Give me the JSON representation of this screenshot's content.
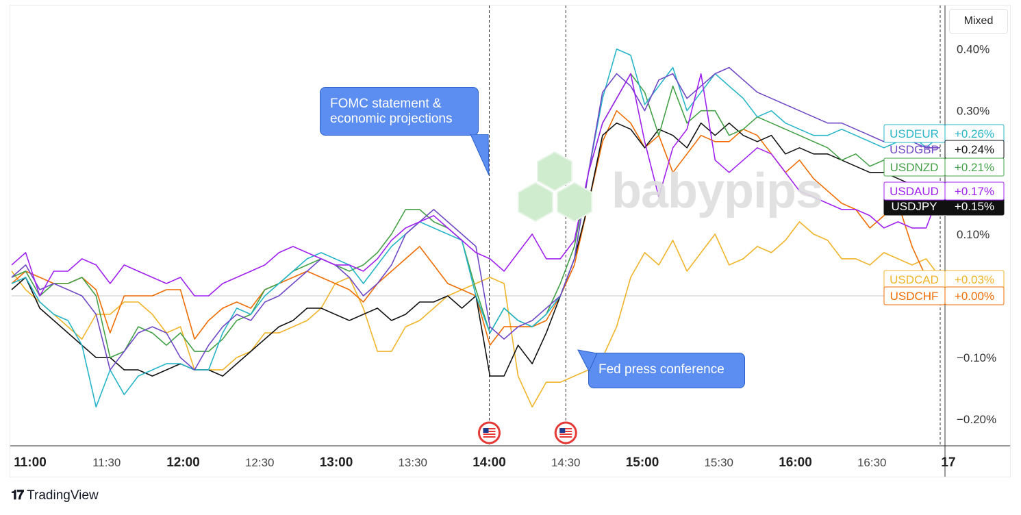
{
  "toolbar": {
    "mode_label": "Mixed"
  },
  "watermark": {
    "text": "babypips"
  },
  "annotations": {
    "fomc": "FOMC statement & economic projections",
    "fed": "Fed press conference"
  },
  "brand": {
    "name": "TradingView"
  },
  "chart_data": {
    "type": "line",
    "x_ticks": [
      "11:00",
      "11:30",
      "12:00",
      "12:30",
      "13:00",
      "13:30",
      "14:00",
      "14:30",
      "15:00",
      "15:30",
      "16:00",
      "16:30",
      "17"
    ],
    "x_ticks_bold": [
      "11:00",
      "12:00",
      "13:00",
      "14:00",
      "15:00",
      "16:00",
      "17"
    ],
    "y_ticks": [
      "0.40%",
      "0.30%",
      "0.10%",
      "−0.10%",
      "−0.20%"
    ],
    "y_tick_values": [
      0.4,
      0.3,
      0.1,
      -0.1,
      -0.2
    ],
    "ylim": [
      -0.245,
      0.445
    ],
    "event_lines": [
      "14:00",
      "14:30"
    ],
    "event_icon": "us-flag-icon",
    "series": [
      {
        "name": "USDCAD",
        "color": "#f0b429",
        "end_label": "+0.03%",
        "values": [
          0.04,
          0.01,
          -0.01,
          -0.03,
          -0.05,
          -0.07,
          -0.03,
          -0.03,
          -0.01,
          -0.01,
          -0.03,
          -0.06,
          -0.05,
          -0.12,
          -0.12,
          -0.12,
          -0.1,
          -0.09,
          -0.06,
          -0.06,
          -0.05,
          -0.04,
          -0.02,
          0.02,
          0.03,
          -0.02,
          -0.09,
          -0.09,
          -0.05,
          -0.04,
          -0.02,
          0.0,
          0.01,
          0.02,
          0.03,
          0.02,
          -0.13,
          -0.18,
          -0.14,
          -0.14,
          -0.13,
          -0.12,
          -0.1,
          -0.05,
          0.03,
          0.07,
          0.05,
          0.09,
          0.04,
          0.07,
          0.1,
          0.05,
          0.06,
          0.08,
          0.07,
          0.09,
          0.12,
          0.1,
          0.09,
          0.06,
          0.06,
          0.05,
          0.07,
          0.06,
          0.05,
          0.06,
          0.03
        ]
      },
      {
        "name": "USDCHF",
        "color": "#ef6c00",
        "end_label": "+0.00%",
        "values": [
          0.02,
          0.04,
          0.03,
          0.02,
          0.02,
          0.03,
          0.01,
          -0.06,
          0.0,
          0.0,
          0.0,
          0.01,
          0.01,
          -0.07,
          -0.04,
          -0.02,
          -0.01,
          -0.02,
          0.01,
          0.02,
          0.03,
          0.04,
          0.03,
          0.02,
          0.01,
          -0.01,
          0.02,
          0.04,
          0.06,
          0.08,
          0.05,
          0.02,
          0.01,
          0.0,
          -0.08,
          -0.05,
          -0.05,
          -0.05,
          -0.04,
          0.0,
          0.05,
          0.15,
          0.25,
          0.3,
          0.28,
          0.24,
          0.26,
          0.2,
          0.23,
          0.26,
          0.25,
          0.25,
          0.27,
          0.26,
          0.23,
          0.2,
          0.22,
          0.19,
          0.17,
          0.15,
          0.14,
          0.11,
          0.13,
          0.15,
          0.08,
          0.03,
          0.0
        ]
      },
      {
        "name": "USDJPY",
        "color": "#111111",
        "end_label": "+0.15%",
        "values": [
          0.01,
          0.03,
          -0.02,
          -0.04,
          -0.06,
          -0.08,
          -0.1,
          -0.1,
          -0.12,
          -0.12,
          -0.13,
          -0.12,
          -0.11,
          -0.12,
          -0.12,
          -0.13,
          -0.11,
          -0.09,
          -0.07,
          -0.05,
          -0.04,
          -0.02,
          -0.02,
          -0.03,
          -0.04,
          -0.03,
          -0.02,
          -0.04,
          -0.03,
          -0.01,
          -0.01,
          0.0,
          -0.02,
          0.0,
          -0.13,
          -0.13,
          -0.08,
          -0.11,
          -0.06,
          0.0,
          0.06,
          0.15,
          0.26,
          0.28,
          0.27,
          0.24,
          0.27,
          0.26,
          0.24,
          0.28,
          0.26,
          0.28,
          0.26,
          0.25,
          0.26,
          0.23,
          0.24,
          0.23,
          0.23,
          0.22,
          0.21,
          0.2,
          0.2,
          0.19,
          0.18,
          0.17,
          0.15
        ]
      },
      {
        "name": "USDNZD",
        "color": "#43a047",
        "end_label": "+0.21%",
        "values": [
          0.03,
          0.04,
          0.0,
          0.02,
          0.02,
          0.03,
          0.0,
          -0.1,
          -0.09,
          -0.05,
          -0.06,
          -0.08,
          -0.06,
          -0.09,
          -0.09,
          -0.07,
          -0.04,
          -0.03,
          0.01,
          0.02,
          0.04,
          0.05,
          0.06,
          0.05,
          0.04,
          0.05,
          0.07,
          0.1,
          0.14,
          0.14,
          0.12,
          0.11,
          0.09,
          0.01,
          -0.06,
          -0.02,
          -0.04,
          -0.05,
          -0.03,
          0.02,
          0.08,
          0.2,
          0.28,
          0.32,
          0.36,
          0.33,
          0.26,
          0.34,
          0.28,
          0.3,
          0.3,
          0.26,
          0.27,
          0.29,
          0.28,
          0.27,
          0.26,
          0.25,
          0.24,
          0.22,
          0.23,
          0.21,
          0.22,
          0.21,
          0.21,
          0.2,
          0.21
        ]
      },
      {
        "name": "USDEUR",
        "color": "#26b5c8",
        "end_label": "+0.26%",
        "values": [
          0.02,
          0.03,
          -0.01,
          -0.03,
          -0.04,
          -0.08,
          -0.18,
          -0.12,
          -0.16,
          -0.13,
          -0.12,
          -0.11,
          -0.11,
          -0.12,
          -0.12,
          -0.06,
          -0.02,
          -0.03,
          0.0,
          0.02,
          0.04,
          0.06,
          0.07,
          0.06,
          0.05,
          0.02,
          0.05,
          0.08,
          0.1,
          0.12,
          0.11,
          0.1,
          0.09,
          0.0,
          -0.06,
          -0.02,
          -0.04,
          -0.05,
          -0.03,
          0.0,
          0.06,
          0.2,
          0.32,
          0.4,
          0.39,
          0.31,
          0.34,
          0.37,
          0.3,
          0.33,
          0.36,
          0.34,
          0.32,
          0.29,
          0.3,
          0.28,
          0.27,
          0.26,
          0.26,
          0.27,
          0.26,
          0.25,
          0.24,
          0.25,
          0.26,
          0.24,
          0.26
        ]
      },
      {
        "name": "USDGBP",
        "color": "#7048c6",
        "end_label": "+0.24%",
        "values": [
          0.03,
          0.05,
          0.01,
          0.02,
          0.01,
          0.0,
          -0.03,
          -0.12,
          -0.09,
          -0.06,
          -0.05,
          -0.06,
          -0.1,
          -0.12,
          -0.08,
          -0.05,
          -0.03,
          -0.04,
          -0.01,
          0.0,
          0.02,
          0.04,
          0.06,
          0.05,
          0.03,
          0.0,
          0.02,
          0.05,
          0.1,
          0.12,
          0.14,
          0.12,
          0.1,
          0.08,
          -0.05,
          -0.07,
          -0.05,
          -0.04,
          -0.02,
          0.0,
          0.06,
          0.2,
          0.33,
          0.36,
          0.34,
          0.3,
          0.35,
          0.36,
          0.32,
          0.34,
          0.36,
          0.37,
          0.35,
          0.33,
          0.32,
          0.31,
          0.3,
          0.29,
          0.28,
          0.28,
          0.27,
          0.26,
          0.25,
          0.26,
          0.25,
          0.24,
          0.24
        ]
      },
      {
        "name": "USDAUD",
        "color": "#a020f0",
        "end_label": "+0.17%",
        "values": [
          0.05,
          0.07,
          0.0,
          0.04,
          0.04,
          0.06,
          0.05,
          0.02,
          0.05,
          0.04,
          0.03,
          0.02,
          0.03,
          0.0,
          0.0,
          0.02,
          0.03,
          0.04,
          0.05,
          0.07,
          0.08,
          0.07,
          0.06,
          0.05,
          0.05,
          0.04,
          0.06,
          0.09,
          0.11,
          0.12,
          0.13,
          0.11,
          0.09,
          0.07,
          0.06,
          0.04,
          0.07,
          0.1,
          0.06,
          0.06,
          0.09,
          0.2,
          0.28,
          0.32,
          0.36,
          0.25,
          0.16,
          0.24,
          0.27,
          0.36,
          0.22,
          0.2,
          0.22,
          0.24,
          0.23,
          0.2,
          0.17,
          0.16,
          0.15,
          0.14,
          0.14,
          0.13,
          0.11,
          0.12,
          0.11,
          0.11,
          0.17
        ]
      }
    ]
  }
}
